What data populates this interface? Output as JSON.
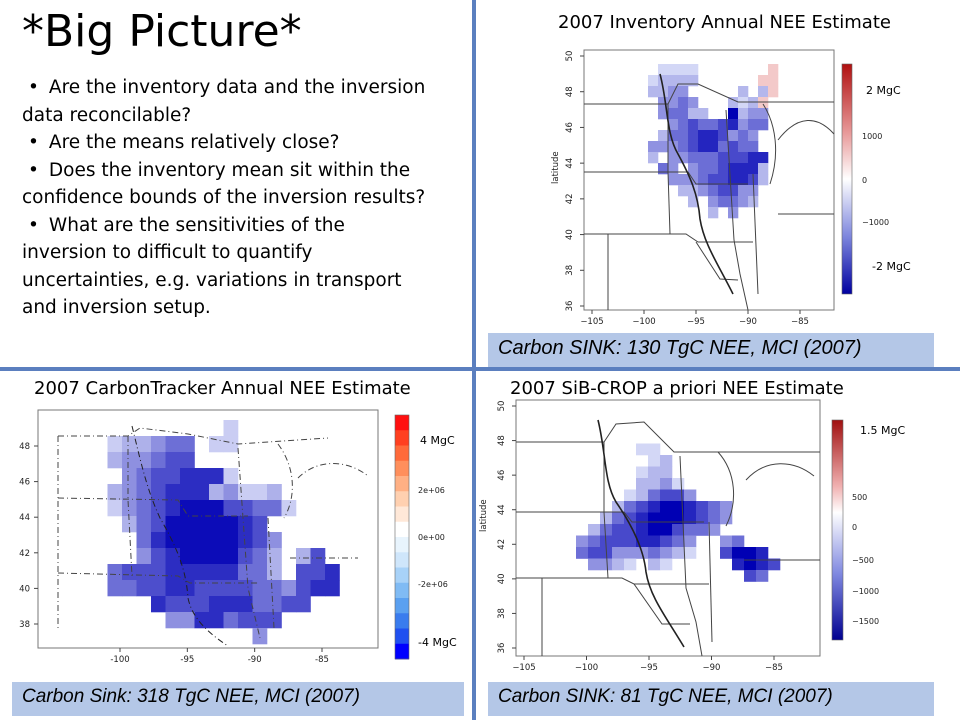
{
  "slide": {
    "title": "*Big Picture*",
    "bullets": [
      "Are the inventory data and the inversion data reconcilable?",
      "Are the means relatively close?",
      "Does the inventory mean sit within the confidence bounds of the inversion results?",
      "What are the sensitivities of the inversion to difficult to quantify uncertainties, e.g. variations in transport and inversion setup."
    ]
  },
  "panels": {
    "inventory": {
      "title": "2007 Inventory Annual NEE Estimate",
      "ylabel": "latitude",
      "yticks": [
        "50",
        "48",
        "46",
        "44",
        "42",
        "40",
        "38",
        "36"
      ],
      "xticks": [
        "−105",
        "−100",
        "−95",
        "−90",
        "−85"
      ],
      "cb_ticks": [
        "1000",
        "0",
        "−1000"
      ],
      "cb_top_label": "2 MgC",
      "cb_bottom_label": "-2 MgC",
      "caption": "Carbon SINK: 130 TgC NEE, MCI (2007)"
    },
    "carbontracker": {
      "title": "2007 CarbonTracker Annual NEE Estimate",
      "yticks": [
        "48",
        "46",
        "44",
        "42",
        "40",
        "38"
      ],
      "xticks": [
        "-100",
        "-95",
        "-90",
        "-85"
      ],
      "cb_ticks": [
        "2e+06",
        "0e+00",
        "-2e+06"
      ],
      "cb_top_label": "4 MgC",
      "cb_bottom_label": "-4 MgC",
      "caption": "Carbon Sink: 318 TgC NEE, MCI (2007)"
    },
    "sibcrop": {
      "title": "2007 SiB-CROP a priori NEE Estimate",
      "ylabel": "latitude",
      "yticks": [
        "50",
        "48",
        "46",
        "44",
        "42",
        "40",
        "38",
        "36"
      ],
      "xticks": [
        "−105",
        "−100",
        "−95",
        "−90",
        "−85"
      ],
      "cb_ticks": [
        "500",
        "0",
        "−500",
        "−1000",
        "−1500"
      ],
      "cb_top_label": "1.5 MgC",
      "caption": "Carbon SINK: 81 TgC NEE, MCI (2007)"
    }
  },
  "colors": {
    "divider": "#5b7fbf",
    "caption_bg": "#b4c7e7",
    "sink_dark": "#0000a8",
    "source_red": "#b01010"
  }
}
